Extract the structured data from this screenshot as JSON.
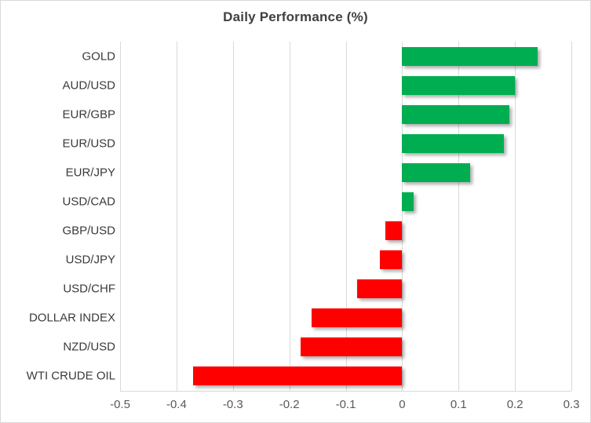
{
  "title": "Daily Performance (%)",
  "colors": {
    "positive": "#00AE51",
    "negative": "#FF0000",
    "gridline": "#D9D9D9",
    "chart_border": "#D9D9D9",
    "title_text": "#404040",
    "category_text": "#3A3A3A",
    "tick_text": "#595959",
    "background": "#FFFFFF"
  },
  "chart_data": {
    "type": "bar",
    "orientation": "horizontal",
    "title": "Daily Performance (%)",
    "categories": [
      "GOLD",
      "AUD/USD",
      "EUR/GBP",
      "EUR/USD",
      "EUR/JPY",
      "USD/CAD",
      "GBP/USD",
      "USD/JPY",
      "USD/CHF",
      "DOLLAR INDEX",
      "NZD/USD",
      "WTI CRUDE OIL"
    ],
    "values": [
      0.24,
      0.2,
      0.19,
      0.18,
      0.12,
      0.02,
      -0.03,
      -0.04,
      -0.08,
      -0.16,
      -0.18,
      -0.37
    ],
    "xlabel": "",
    "ylabel": "",
    "xlim": [
      -0.5,
      0.3
    ],
    "x_ticks": [
      -0.5,
      -0.4,
      -0.3,
      -0.2,
      -0.1,
      0,
      0.1,
      0.2,
      0.3
    ],
    "x_tick_labels": [
      "-0.5",
      "-0.4",
      "-0.3",
      "-0.2",
      "-0.1",
      "0",
      "0.1",
      "0.2",
      "0.3"
    ],
    "grid": "vertical-only",
    "legend": "none",
    "bar_color_positive": "#00AE51",
    "bar_color_negative": "#FF0000"
  }
}
